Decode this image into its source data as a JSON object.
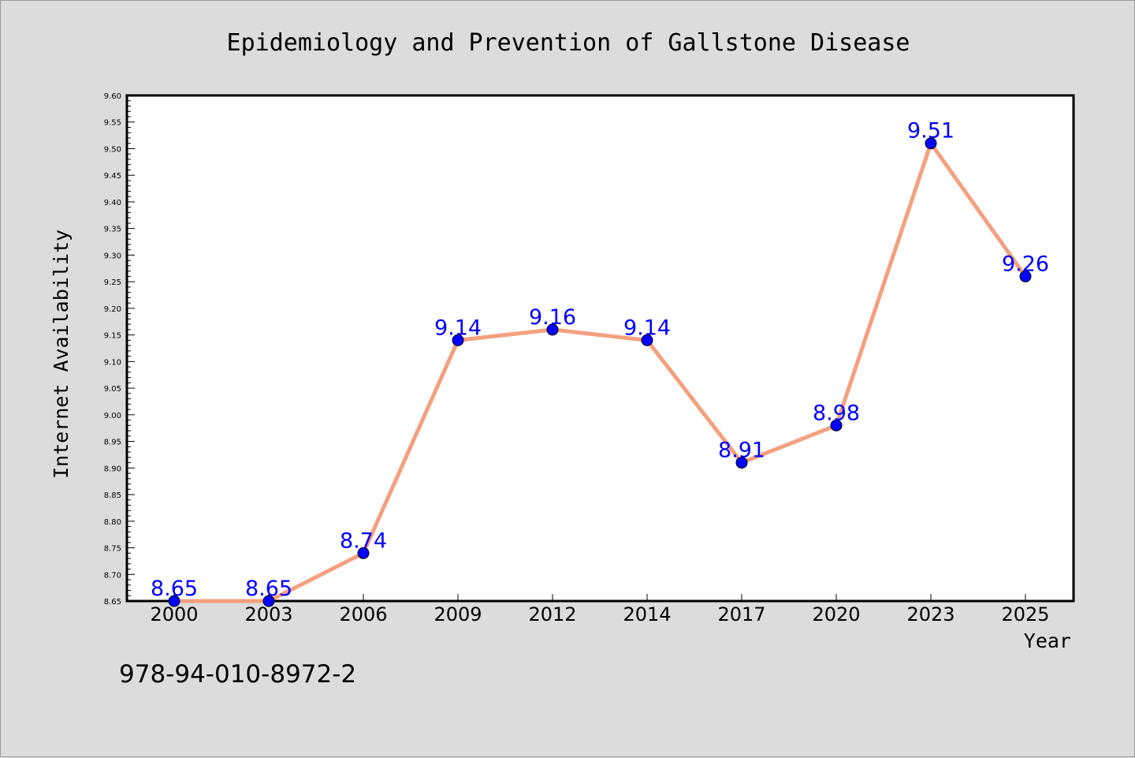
{
  "footer": {
    "isbn": "978-94-010-8972-2"
  },
  "chart_data": {
    "type": "line",
    "title": "Epidemiology and Prevention of Gallstone Disease",
    "xlabel": "Year",
    "ylabel": "Internet Availability",
    "categories": [
      "2000",
      "2003",
      "2006",
      "2009",
      "2012",
      "2014",
      "2017",
      "2020",
      "2023",
      "2025"
    ],
    "series": [
      {
        "values": [
          8.65,
          8.65,
          8.74,
          9.14,
          9.16,
          9.14,
          8.91,
          8.98,
          9.51,
          9.26
        ],
        "line_color": "#f4a07f",
        "marker_color": "#0000ff"
      }
    ],
    "data_labels": [
      "8.65",
      "8.65",
      "8.74",
      "9.14",
      "9.16",
      "9.14",
      "8.91",
      "8.98",
      "9.51",
      "9.26"
    ],
    "ylim": [
      8.65,
      9.6
    ],
    "y_ticks": [
      "8.65",
      "8.70",
      "8.75",
      "8.80",
      "8.85",
      "8.90",
      "8.95",
      "9.00",
      "9.05",
      "9.10",
      "9.15",
      "9.20",
      "9.25",
      "9.30",
      "9.35",
      "9.40",
      "9.45",
      "9.50",
      "9.55",
      "9.60"
    ],
    "grid": false,
    "legend": "none",
    "colors": {
      "background": "#dcdcdc",
      "plot_background": "#ffffff",
      "line": "#f4a07f",
      "marker": "#0000ff",
      "data_label": "#0000ff"
    }
  }
}
